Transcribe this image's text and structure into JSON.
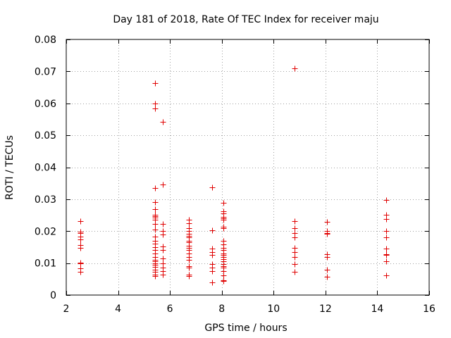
{
  "chart_data": {
    "type": "scatter",
    "title": "Day 181 of 2018, Rate Of TEC Index for receiver maju",
    "xlabel": "GPS time / hours",
    "ylabel": "ROTI / TECUs",
    "xlim": [
      2,
      16
    ],
    "ylim": [
      0,
      0.08
    ],
    "xticks": [
      2,
      4,
      6,
      8,
      10,
      12,
      14,
      16
    ],
    "xtick_labels": [
      "2",
      "4",
      "6",
      "8",
      "10",
      "12",
      "14",
      "16"
    ],
    "yticks": [
      0,
      0.01,
      0.02,
      0.03,
      0.04,
      0.05,
      0.06,
      0.07,
      0.08
    ],
    "ytick_labels": [
      "0",
      "0.01",
      "0.02",
      "0.03",
      "0.04",
      "0.05",
      "0.06",
      "0.07",
      "0.08"
    ],
    "grid": true,
    "marker": "+",
    "color": "#e00000",
    "series": [
      {
        "name": "ROTI",
        "points": [
          [
            2.55,
            0.0232
          ],
          [
            2.55,
            0.0198
          ],
          [
            2.55,
            0.0195
          ],
          [
            2.55,
            0.0183
          ],
          [
            2.55,
            0.0175
          ],
          [
            2.55,
            0.0157
          ],
          [
            2.55,
            0.0147
          ],
          [
            2.55,
            0.0101
          ],
          [
            2.55,
            0.0099
          ],
          [
            2.55,
            0.0084
          ],
          [
            2.55,
            0.0073
          ],
          [
            5.42,
            0.0663
          ],
          [
            5.42,
            0.06
          ],
          [
            5.42,
            0.0585
          ],
          [
            5.72,
            0.0543
          ],
          [
            5.72,
            0.0345
          ],
          [
            5.42,
            0.0334
          ],
          [
            5.42,
            0.029
          ],
          [
            5.42,
            0.0269
          ],
          [
            5.42,
            0.0252
          ],
          [
            5.42,
            0.0247
          ],
          [
            5.42,
            0.0243
          ],
          [
            5.42,
            0.0235
          ],
          [
            5.42,
            0.0222
          ],
          [
            5.42,
            0.0205
          ],
          [
            5.42,
            0.0182
          ],
          [
            5.42,
            0.017
          ],
          [
            5.42,
            0.016
          ],
          [
            5.42,
            0.015
          ],
          [
            5.42,
            0.014
          ],
          [
            5.42,
            0.013
          ],
          [
            5.42,
            0.012
          ],
          [
            5.42,
            0.011
          ],
          [
            5.42,
            0.0105
          ],
          [
            5.42,
            0.01
          ],
          [
            5.42,
            0.0095
          ],
          [
            5.42,
            0.0088
          ],
          [
            5.42,
            0.008
          ],
          [
            5.42,
            0.0072
          ],
          [
            5.42,
            0.0065
          ],
          [
            5.42,
            0.006
          ],
          [
            5.72,
            0.0222
          ],
          [
            5.72,
            0.02
          ],
          [
            5.72,
            0.019
          ],
          [
            5.72,
            0.0152
          ],
          [
            5.72,
            0.014
          ],
          [
            5.72,
            0.0115
          ],
          [
            5.72,
            0.01
          ],
          [
            5.72,
            0.0085
          ],
          [
            5.72,
            0.0075
          ],
          [
            5.72,
            0.0063
          ],
          [
            6.72,
            0.0235
          ],
          [
            6.72,
            0.0225
          ],
          [
            6.72,
            0.021
          ],
          [
            6.72,
            0.02
          ],
          [
            6.72,
            0.0192
          ],
          [
            6.72,
            0.0185
          ],
          [
            6.72,
            0.018
          ],
          [
            6.72,
            0.017
          ],
          [
            6.72,
            0.0165
          ],
          [
            6.72,
            0.0155
          ],
          [
            6.72,
            0.0148
          ],
          [
            6.72,
            0.014
          ],
          [
            6.72,
            0.013
          ],
          [
            6.72,
            0.012
          ],
          [
            6.72,
            0.011
          ],
          [
            6.72,
            0.009
          ],
          [
            6.72,
            0.0085
          ],
          [
            6.72,
            0.0065
          ],
          [
            6.72,
            0.006
          ],
          [
            7.62,
            0.0338
          ],
          [
            7.62,
            0.0203
          ],
          [
            7.62,
            0.0145
          ],
          [
            7.62,
            0.0135
          ],
          [
            7.62,
            0.0125
          ],
          [
            7.62,
            0.0098
          ],
          [
            7.62,
            0.0085
          ],
          [
            7.62,
            0.0075
          ],
          [
            7.62,
            0.004
          ],
          [
            8.05,
            0.0288
          ],
          [
            8.05,
            0.0262
          ],
          [
            8.05,
            0.0255
          ],
          [
            8.05,
            0.0245
          ],
          [
            8.05,
            0.024
          ],
          [
            8.05,
            0.0235
          ],
          [
            8.05,
            0.0213
          ],
          [
            8.05,
            0.021
          ],
          [
            8.05,
            0.017
          ],
          [
            8.05,
            0.0158
          ],
          [
            8.05,
            0.0148
          ],
          [
            8.05,
            0.014
          ],
          [
            8.05,
            0.013
          ],
          [
            8.05,
            0.0125
          ],
          [
            8.05,
            0.012
          ],
          [
            8.05,
            0.0112
          ],
          [
            8.05,
            0.0105
          ],
          [
            8.05,
            0.0098
          ],
          [
            8.05,
            0.009
          ],
          [
            8.05,
            0.0085
          ],
          [
            8.05,
            0.0075
          ],
          [
            8.05,
            0.0062
          ],
          [
            8.05,
            0.0047
          ],
          [
            8.05,
            0.0043
          ],
          [
            10.8,
            0.071
          ],
          [
            10.8,
            0.0232
          ],
          [
            10.8,
            0.021
          ],
          [
            10.8,
            0.0195
          ],
          [
            10.8,
            0.018
          ],
          [
            10.8,
            0.0148
          ],
          [
            10.8,
            0.0135
          ],
          [
            10.8,
            0.012
          ],
          [
            10.8,
            0.0098
          ],
          [
            10.8,
            0.0073
          ],
          [
            12.05,
            0.023
          ],
          [
            12.05,
            0.02
          ],
          [
            12.05,
            0.0195
          ],
          [
            12.05,
            0.0192
          ],
          [
            12.05,
            0.0128
          ],
          [
            12.05,
            0.0118
          ],
          [
            12.05,
            0.008
          ],
          [
            12.05,
            0.0057
          ],
          [
            14.35,
            0.0298
          ],
          [
            14.35,
            0.0252
          ],
          [
            14.35,
            0.0238
          ],
          [
            14.35,
            0.02
          ],
          [
            14.35,
            0.018
          ],
          [
            14.35,
            0.0145
          ],
          [
            14.35,
            0.0128
          ],
          [
            14.35,
            0.0125
          ],
          [
            14.35,
            0.0105
          ],
          [
            14.35,
            0.0062
          ]
        ]
      }
    ]
  }
}
